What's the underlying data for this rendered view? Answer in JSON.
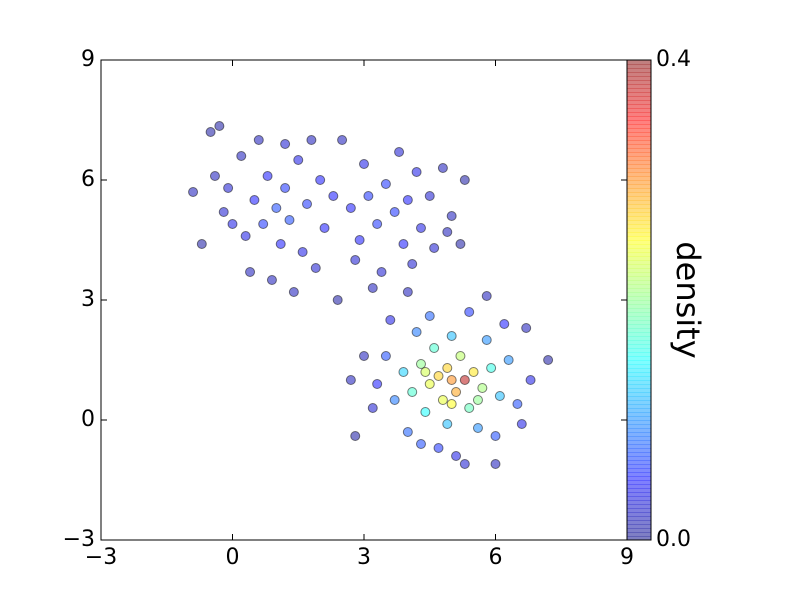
{
  "chart_data": {
    "type": "scatter",
    "x": [
      -0.9,
      -0.5,
      -0.3,
      -0.7,
      -0.2,
      0.2,
      0.3,
      0.5,
      0.7,
      0.8,
      1.0,
      1.1,
      1.2,
      1.3,
      1.5,
      1.6,
      1.7,
      1.9,
      2.0,
      2.1,
      0.4,
      0.9,
      1.4,
      2.4,
      2.5,
      2.7,
      2.9,
      3.0,
      3.1,
      3.3,
      3.4,
      3.5,
      3.7,
      3.8,
      3.9,
      4.0,
      4.2,
      4.3,
      4.5,
      4.6,
      4.8,
      5.0,
      5.3,
      5.2,
      4.9,
      0.0,
      -0.4,
      1.8,
      3.2,
      2.3,
      0.6,
      4.1,
      2.8,
      1.2,
      -0.1,
      5.0,
      5.3,
      4.7,
      5.1,
      4.9,
      4.5,
      5.5,
      4.3,
      5.7,
      4.8,
      5.2,
      4.1,
      5.9,
      4.6,
      5.4,
      3.9,
      6.1,
      4.4,
      5.0,
      3.7,
      6.3,
      4.2,
      5.8,
      4.9,
      5.6,
      3.5,
      6.5,
      4.0,
      6.0,
      3.3,
      6.8,
      3.6,
      5.4,
      4.5,
      5.1,
      5.3,
      6.6,
      7.2,
      2.7,
      2.8,
      3.2,
      4.7,
      6.2,
      3.0,
      5.8,
      6.7,
      4.0,
      6.0,
      4.3,
      5.6,
      4.4,
      5.0
    ],
    "values": [
      5.7,
      7.2,
      7.35,
      4.4,
      5.2,
      6.6,
      4.6,
      5.5,
      4.9,
      6.1,
      5.3,
      4.4,
      5.8,
      5.0,
      6.5,
      4.2,
      5.4,
      3.8,
      6.0,
      4.8,
      3.7,
      3.5,
      3.2,
      3.0,
      7.0,
      5.3,
      4.5,
      6.4,
      5.6,
      4.9,
      3.7,
      5.9,
      5.2,
      6.7,
      4.4,
      5.5,
      6.2,
      4.8,
      5.6,
      4.3,
      6.3,
      5.1,
      6.0,
      4.4,
      4.7,
      4.9,
      6.1,
      7.0,
      3.3,
      5.6,
      7.0,
      3.9,
      4.0,
      6.9,
      5.8,
      1.0,
      1.0,
      1.1,
      0.7,
      1.3,
      0.9,
      1.2,
      1.4,
      0.8,
      0.5,
      1.6,
      0.7,
      1.3,
      1.8,
      0.3,
      1.2,
      0.6,
      0.2,
      2.1,
      0.5,
      1.5,
      2.2,
      2.0,
      -0.1,
      -0.2,
      1.6,
      0.4,
      -0.3,
      -0.4,
      0.9,
      1.0,
      2.5,
      2.7,
      2.6,
      -0.9,
      -1.1,
      -0.1,
      1.5,
      1.0,
      -0.4,
      0.3,
      -0.7,
      2.4,
      1.6,
      3.1,
      2.3,
      3.2,
      -1.1,
      -0.6,
      0.5,
      1.2,
      0.4
    ],
    "density": [
      0.02,
      0.01,
      0.01,
      0.01,
      0.03,
      0.02,
      0.04,
      0.05,
      0.06,
      0.05,
      0.07,
      0.05,
      0.06,
      0.07,
      0.04,
      0.04,
      0.06,
      0.03,
      0.05,
      0.05,
      0.02,
      0.02,
      0.02,
      0.01,
      0.02,
      0.05,
      0.05,
      0.04,
      0.06,
      0.06,
      0.03,
      0.06,
      0.06,
      0.03,
      0.05,
      0.05,
      0.04,
      0.04,
      0.03,
      0.03,
      0.02,
      0.02,
      0.01,
      0.01,
      0.02,
      0.04,
      0.02,
      0.02,
      0.02,
      0.05,
      0.02,
      0.03,
      0.03,
      0.03,
      0.03,
      0.3,
      0.38,
      0.27,
      0.29,
      0.27,
      0.24,
      0.26,
      0.2,
      0.21,
      0.24,
      0.22,
      0.17,
      0.16,
      0.17,
      0.18,
      0.13,
      0.12,
      0.15,
      0.12,
      0.09,
      0.1,
      0.09,
      0.1,
      0.12,
      0.1,
      0.07,
      0.07,
      0.08,
      0.07,
      0.05,
      0.04,
      0.04,
      0.06,
      0.08,
      0.04,
      0.03,
      0.04,
      0.01,
      0.02,
      0.01,
      0.03,
      0.06,
      0.05,
      0.02,
      0.02,
      0.02,
      0.02,
      0.02,
      0.07,
      0.2,
      0.23,
      0.25
    ],
    "colormap": "jet",
    "alpha": 0.5,
    "edge_color": "#000000",
    "xlim": [
      -3,
      9
    ],
    "ylim": [
      -3,
      9
    ],
    "xticks": [
      {
        "value": -3,
        "label": "−3"
      },
      0,
      3,
      6,
      9
    ],
    "yticks": [
      {
        "value": -3,
        "label": "−3"
      },
      0,
      3,
      6,
      9
    ],
    "colorbar": {
      "label": "density",
      "lim": [
        0,
        0.4
      ],
      "ticks": [
        {
          "value": 0,
          "label": "0.0"
        },
        0.4
      ]
    }
  }
}
